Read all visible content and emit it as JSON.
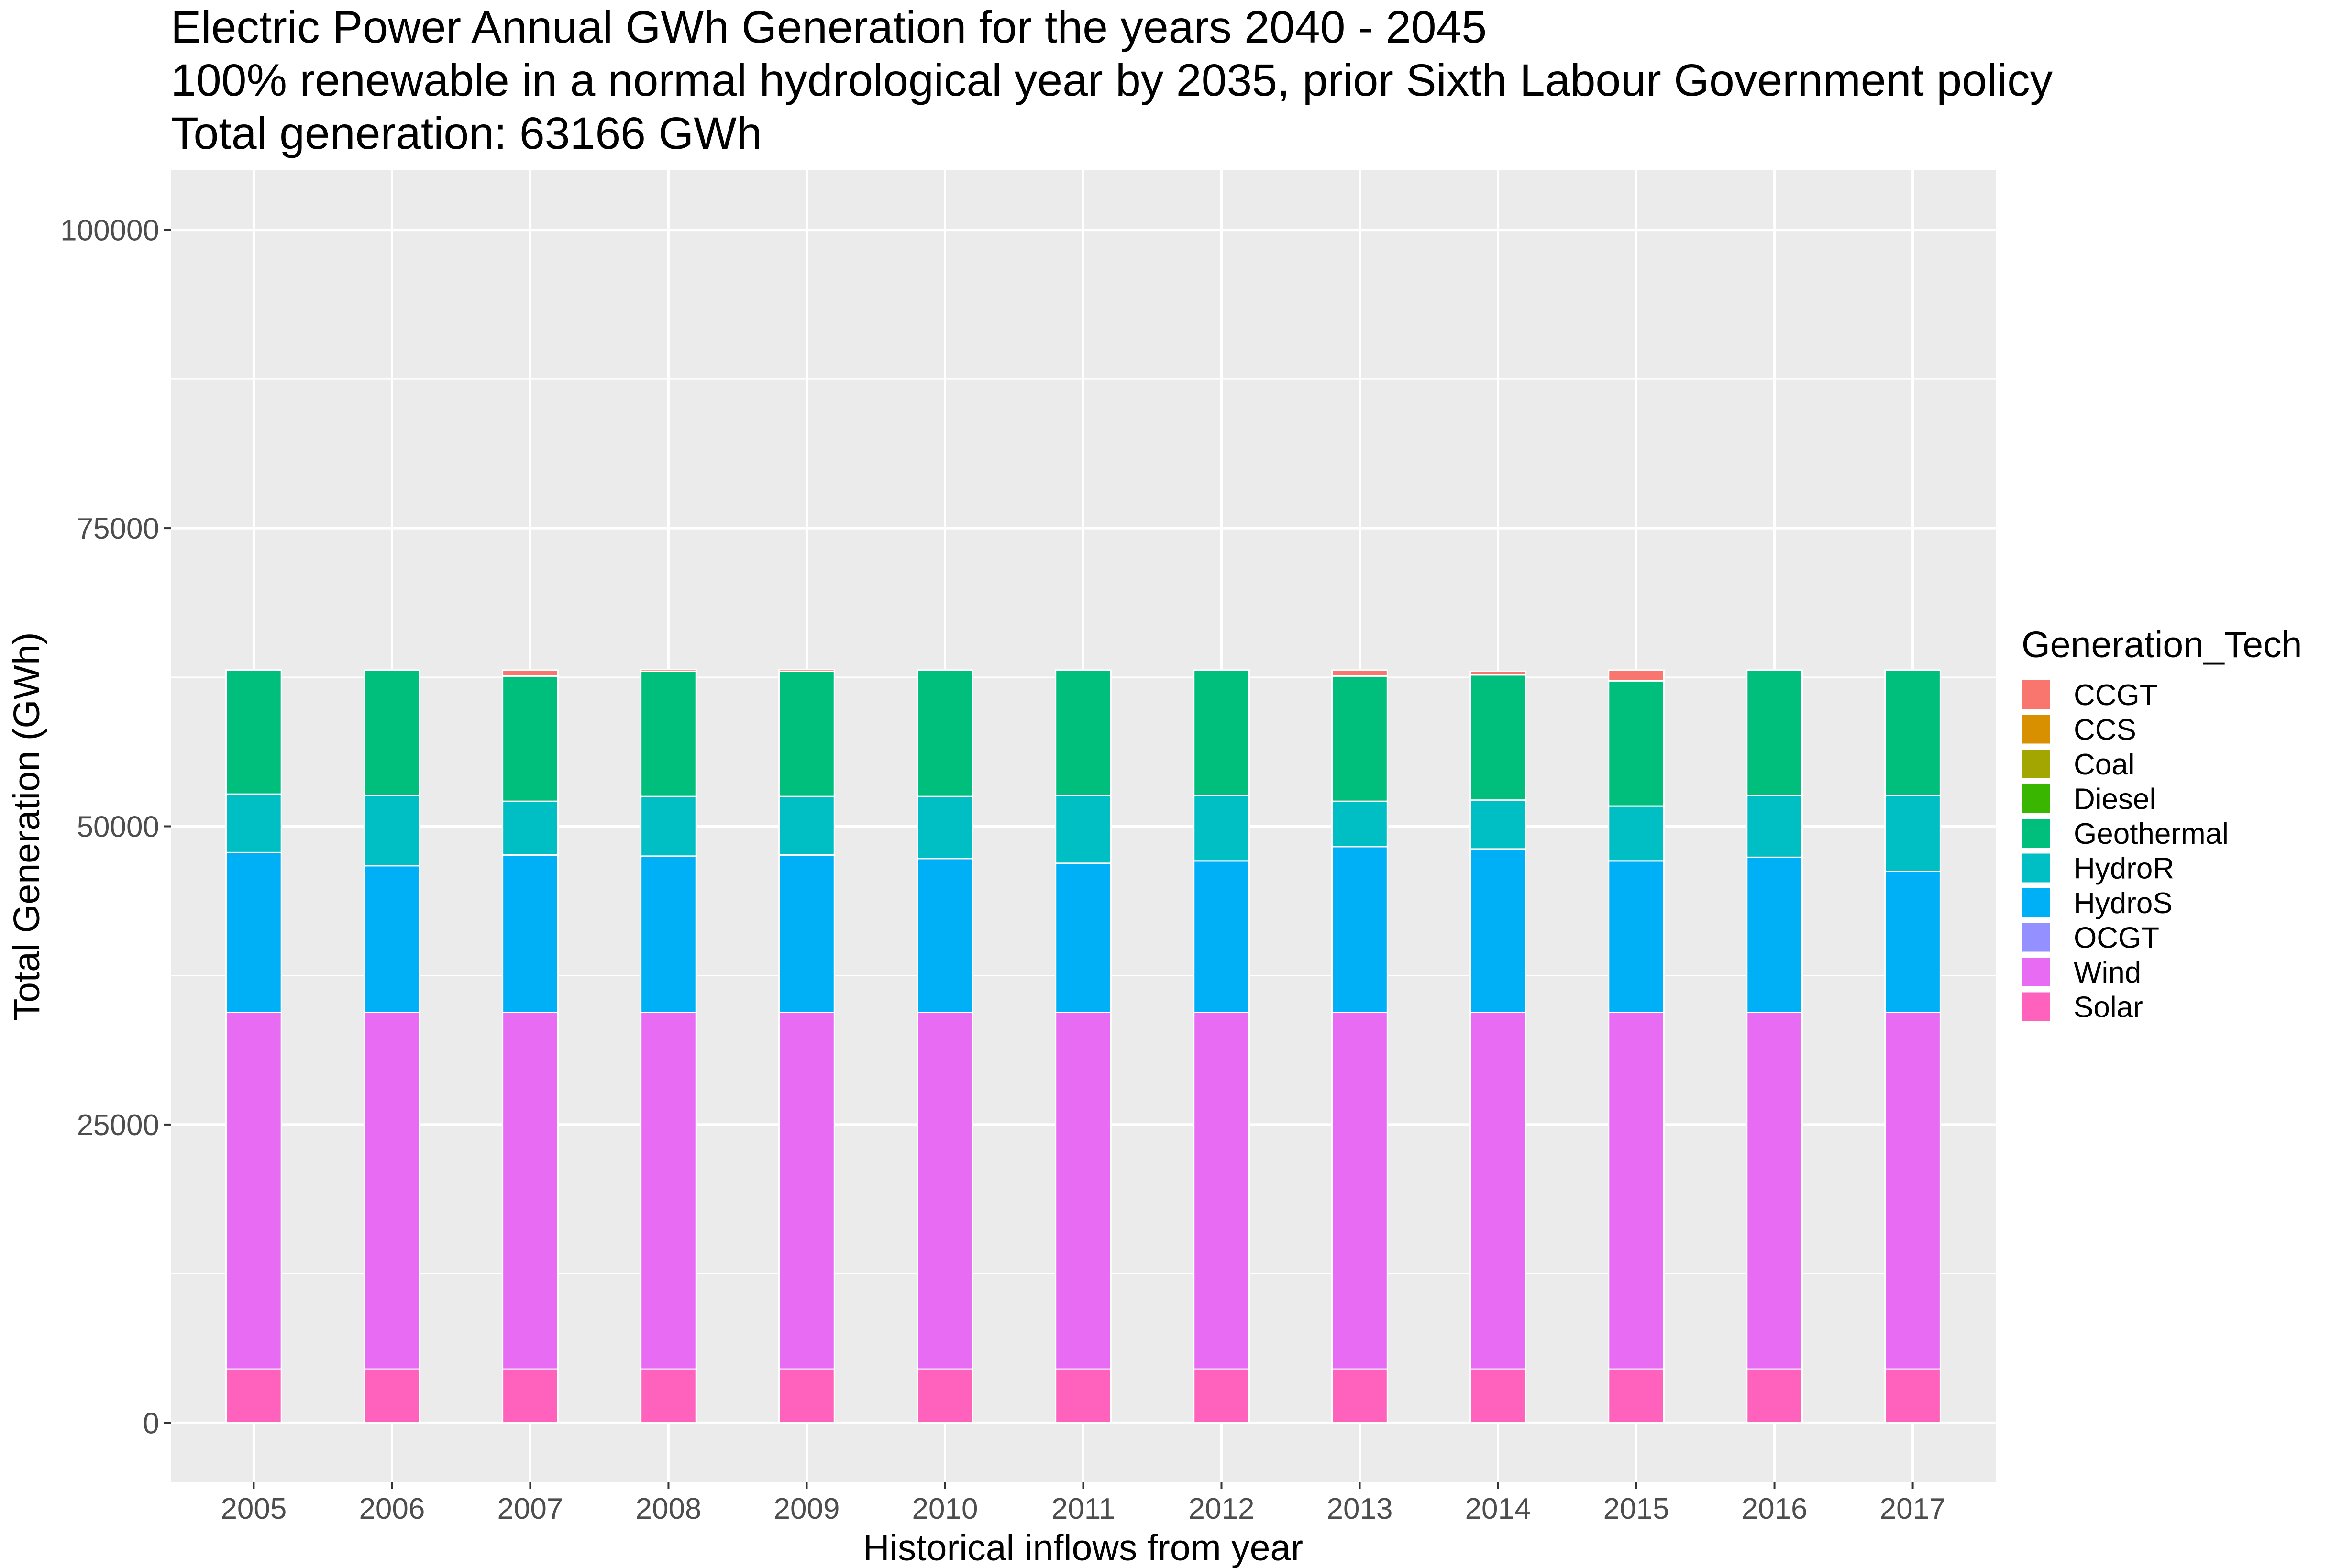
{
  "chart_data": {
    "type": "bar",
    "stacked": true,
    "title_lines": [
      "Electric Power Annual GWh Generation for the years 2040 - 2045",
      "100% renewable in a normal hydrological year by 2035, prior Sixth Labour Government policy",
      "Total generation: 63166 GWh"
    ],
    "xlabel": "Historical inflows from year",
    "ylabel": "Total Generation (GWh)",
    "ylim": [
      -5000,
      105000
    ],
    "yticks": [
      0,
      25000,
      50000,
      75000,
      100000
    ],
    "ytick_labels": [
      "0",
      "25000",
      "50000",
      "75000",
      "100000"
    ],
    "grid": true,
    "legend": {
      "title": "Generation_Tech",
      "position": "right",
      "entries": [
        "CCGT",
        "CCS",
        "Coal",
        "Diesel",
        "Geothermal",
        "HydroR",
        "HydroS",
        "OCGT",
        "Wind",
        "Solar"
      ]
    },
    "colors": {
      "CCGT": "#F8766D",
      "CCS": "#D89000",
      "Coal": "#A3A500",
      "Diesel": "#39B600",
      "Geothermal": "#00BF7D",
      "HydroR": "#00BFC4",
      "HydroS": "#00B0F6",
      "OCGT": "#9590FF",
      "Wind": "#E76BF3",
      "Solar": "#FF62BC"
    },
    "stack_order": [
      "Solar",
      "Wind",
      "OCGT",
      "HydroS",
      "HydroR",
      "Geothermal",
      "Diesel",
      "Coal",
      "CCS",
      "CCGT"
    ],
    "categories": [
      "2005",
      "2006",
      "2007",
      "2008",
      "2009",
      "2010",
      "2011",
      "2012",
      "2013",
      "2014",
      "2015",
      "2016",
      "2017"
    ],
    "series": [
      {
        "name": "Solar",
        "values": [
          4500,
          4500,
          4500,
          4500,
          4500,
          4500,
          4500,
          4500,
          4500,
          4500,
          4500,
          4500,
          4500
        ]
      },
      {
        "name": "Wind",
        "values": [
          29900,
          29900,
          29900,
          29900,
          29900,
          29900,
          29900,
          29900,
          29900,
          29900,
          29900,
          29900,
          29900
        ]
      },
      {
        "name": "OCGT",
        "values": [
          0,
          0,
          0,
          0,
          0,
          0,
          0,
          0,
          0,
          0,
          0,
          0,
          0
        ]
      },
      {
        "name": "HydroS",
        "values": [
          13400,
          12300,
          13200,
          13100,
          13200,
          12900,
          12500,
          12700,
          13900,
          13700,
          12700,
          13000,
          11800
        ]
      },
      {
        "name": "HydroR",
        "values": [
          4900,
          5900,
          4500,
          5000,
          4900,
          5200,
          5700,
          5500,
          3800,
          4100,
          4600,
          5200,
          6400
        ]
      },
      {
        "name": "Geothermal",
        "values": [
          10400,
          10500,
          10500,
          10500,
          10500,
          10600,
          10500,
          10500,
          10500,
          10500,
          10500,
          10500,
          10500
        ]
      },
      {
        "name": "Diesel",
        "values": [
          0,
          0,
          0,
          0,
          0,
          0,
          0,
          0,
          0,
          0,
          0,
          0,
          0
        ]
      },
      {
        "name": "Coal",
        "values": [
          0,
          0,
          0,
          0,
          0,
          0,
          0,
          0,
          0,
          0,
          0,
          0,
          0
        ]
      },
      {
        "name": "CCS",
        "values": [
          0,
          0,
          0,
          0,
          0,
          0,
          0,
          0,
          0,
          0,
          0,
          0,
          0
        ]
      },
      {
        "name": "CCGT",
        "values": [
          50,
          0,
          500,
          150,
          150,
          0,
          0,
          0,
          500,
          300,
          900,
          0,
          0
        ]
      }
    ]
  }
}
